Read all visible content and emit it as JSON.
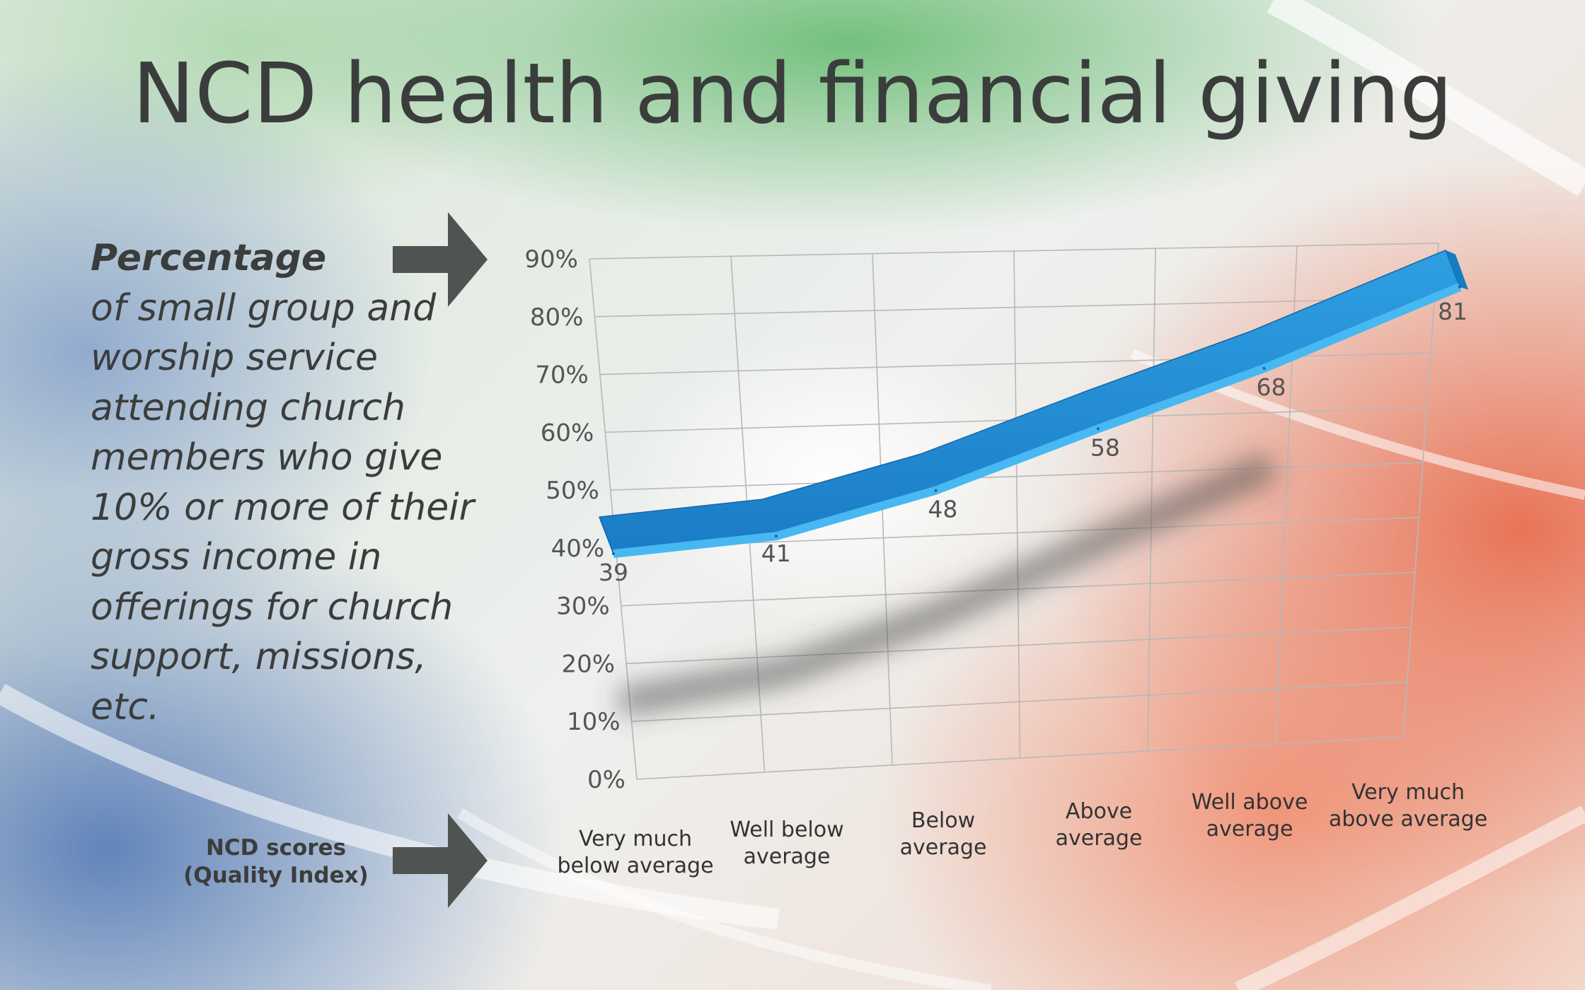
{
  "slide": {
    "title": "NCD health and financial giving",
    "description_strong": "Percentage",
    "description_rest": "of small group and worship service attending church members who give 10% or more of their gross income in offerings for church support, missions, etc.",
    "ncd_label_line1": "NCD scores",
    "ncd_label_line2": "(Quality Index)"
  },
  "colors": {
    "line": "#1f8fd6",
    "line_top": "#2a9ee0",
    "line_edge": "#1565a8",
    "grid": "#b8b8b8",
    "text": "#3b3d3c",
    "arrow": "#4f5351"
  },
  "chart_data": {
    "type": "line",
    "style": "3d-ribbon",
    "ylim": [
      0,
      90
    ],
    "yticks": [
      "0%",
      "10%",
      "20%",
      "30%",
      "40%",
      "50%",
      "60%",
      "70%",
      "80%",
      "90%"
    ],
    "categories": [
      [
        "Very much",
        "below average"
      ],
      [
        "Well below",
        "average"
      ],
      [
        "Below",
        "average"
      ],
      [
        "Above",
        "average"
      ],
      [
        "Well above",
        "average"
      ],
      [
        "Very much",
        "above average"
      ]
    ],
    "values": [
      39,
      41,
      48,
      58,
      68,
      81
    ],
    "data_labels": [
      "39",
      "41",
      "48",
      "58",
      "68",
      "81"
    ],
    "grid": true,
    "legend": "none"
  }
}
